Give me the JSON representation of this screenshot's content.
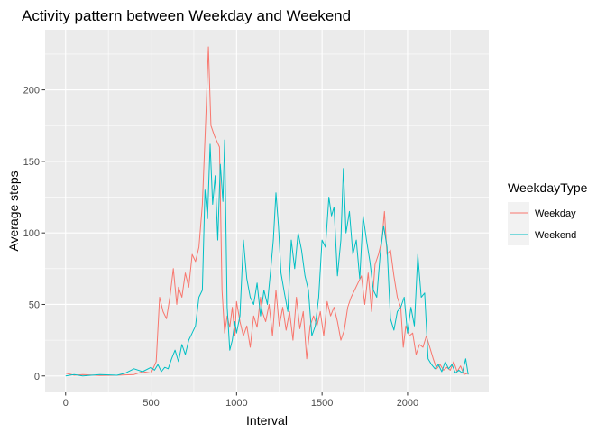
{
  "chart_data": {
    "type": "line",
    "title": "Activity pattern between Weekday and Weekend",
    "xlabel": "Interval",
    "ylabel": "Average steps",
    "xlim": [
      -120,
      2475
    ],
    "ylim": [
      -11.5,
      242
    ],
    "xticks": [
      0,
      500,
      1000,
      1500,
      2000
    ],
    "yticks": [
      0,
      50,
      100,
      150,
      200
    ],
    "grid": true,
    "legend": {
      "title": "WeekdayType",
      "placement": "right"
    },
    "series": [
      {
        "name": "Weekday",
        "color": "#F8766D",
        "points": [
          [
            0,
            2
          ],
          [
            50,
            0.5
          ],
          [
            100,
            1
          ],
          [
            200,
            0.3
          ],
          [
            300,
            0.5
          ],
          [
            400,
            1
          ],
          [
            450,
            3
          ],
          [
            500,
            2
          ],
          [
            530,
            10
          ],
          [
            550,
            55
          ],
          [
            570,
            45
          ],
          [
            590,
            40
          ],
          [
            610,
            55
          ],
          [
            630,
            75
          ],
          [
            650,
            50
          ],
          [
            660,
            62
          ],
          [
            680,
            55
          ],
          [
            700,
            72
          ],
          [
            720,
            62
          ],
          [
            740,
            85
          ],
          [
            760,
            80
          ],
          [
            780,
            90
          ],
          [
            800,
            120
          ],
          [
            820,
            180
          ],
          [
            835,
            230
          ],
          [
            850,
            175
          ],
          [
            870,
            168
          ],
          [
            900,
            160
          ],
          [
            915,
            60
          ],
          [
            930,
            30
          ],
          [
            945,
            42
          ],
          [
            960,
            34
          ],
          [
            975,
            48
          ],
          [
            990,
            28
          ],
          [
            1000,
            52
          ],
          [
            1020,
            38
          ],
          [
            1040,
            28
          ],
          [
            1060,
            35
          ],
          [
            1080,
            20
          ],
          [
            1100,
            42
          ],
          [
            1120,
            34
          ],
          [
            1140,
            55
          ],
          [
            1150,
            45
          ],
          [
            1170,
            38
          ],
          [
            1190,
            50
          ],
          [
            1210,
            28
          ],
          [
            1230,
            60
          ],
          [
            1250,
            35
          ],
          [
            1270,
            48
          ],
          [
            1290,
            32
          ],
          [
            1310,
            45
          ],
          [
            1330,
            25
          ],
          [
            1350,
            55
          ],
          [
            1370,
            33
          ],
          [
            1390,
            45
          ],
          [
            1410,
            12
          ],
          [
            1430,
            35
          ],
          [
            1450,
            42
          ],
          [
            1470,
            35
          ],
          [
            1490,
            45
          ],
          [
            1510,
            28
          ],
          [
            1530,
            52
          ],
          [
            1550,
            42
          ],
          [
            1570,
            48
          ],
          [
            1590,
            38
          ],
          [
            1610,
            25
          ],
          [
            1630,
            32
          ],
          [
            1650,
            48
          ],
          [
            1670,
            55
          ],
          [
            1690,
            60
          ],
          [
            1710,
            65
          ],
          [
            1730,
            70
          ],
          [
            1750,
            50
          ],
          [
            1770,
            72
          ],
          [
            1790,
            45
          ],
          [
            1810,
            78
          ],
          [
            1830,
            85
          ],
          [
            1850,
            95
          ],
          [
            1865,
            115
          ],
          [
            1880,
            85
          ],
          [
            1900,
            88
          ],
          [
            1920,
            70
          ],
          [
            1940,
            55
          ],
          [
            1960,
            48
          ],
          [
            1975,
            20
          ],
          [
            1990,
            35
          ],
          [
            2010,
            28
          ],
          [
            2030,
            30
          ],
          [
            2050,
            15
          ],
          [
            2070,
            22
          ],
          [
            2090,
            20
          ],
          [
            2110,
            28
          ],
          [
            2130,
            20
          ],
          [
            2150,
            12
          ],
          [
            2170,
            5
          ],
          [
            2190,
            8
          ],
          [
            2210,
            4
          ],
          [
            2230,
            6
          ],
          [
            2250,
            4
          ],
          [
            2270,
            10
          ],
          [
            2290,
            3
          ],
          [
            2310,
            7
          ],
          [
            2330,
            1
          ],
          [
            2355,
            2
          ]
        ]
      },
      {
        "name": "Weekend",
        "color": "#00BFC4",
        "points": [
          [
            0,
            0
          ],
          [
            50,
            1
          ],
          [
            100,
            0
          ],
          [
            200,
            1
          ],
          [
            300,
            0.5
          ],
          [
            350,
            2
          ],
          [
            400,
            5
          ],
          [
            450,
            3
          ],
          [
            500,
            6
          ],
          [
            520,
            4
          ],
          [
            540,
            8
          ],
          [
            560,
            3
          ],
          [
            580,
            6
          ],
          [
            600,
            5
          ],
          [
            620,
            12
          ],
          [
            640,
            18
          ],
          [
            660,
            10
          ],
          [
            680,
            22
          ],
          [
            700,
            15
          ],
          [
            720,
            25
          ],
          [
            740,
            30
          ],
          [
            760,
            35
          ],
          [
            780,
            55
          ],
          [
            800,
            60
          ],
          [
            815,
            130
          ],
          [
            830,
            110
          ],
          [
            845,
            162
          ],
          [
            860,
            120
          ],
          [
            875,
            140
          ],
          [
            890,
            95
          ],
          [
            905,
            148
          ],
          [
            920,
            122
          ],
          [
            930,
            165
          ],
          [
            945,
            48
          ],
          [
            960,
            18
          ],
          [
            975,
            25
          ],
          [
            990,
            38
          ],
          [
            1000,
            30
          ],
          [
            1020,
            42
          ],
          [
            1040,
            95
          ],
          [
            1060,
            68
          ],
          [
            1080,
            55
          ],
          [
            1100,
            50
          ],
          [
            1120,
            65
          ],
          [
            1140,
            42
          ],
          [
            1160,
            60
          ],
          [
            1180,
            50
          ],
          [
            1200,
            75
          ],
          [
            1215,
            95
          ],
          [
            1230,
            128
          ],
          [
            1245,
            105
          ],
          [
            1260,
            72
          ],
          [
            1280,
            58
          ],
          [
            1300,
            45
          ],
          [
            1320,
            95
          ],
          [
            1340,
            75
          ],
          [
            1360,
            100
          ],
          [
            1380,
            88
          ],
          [
            1400,
            70
          ],
          [
            1420,
            60
          ],
          [
            1440,
            28
          ],
          [
            1460,
            35
          ],
          [
            1480,
            55
          ],
          [
            1500,
            95
          ],
          [
            1520,
            90
          ],
          [
            1540,
            125
          ],
          [
            1555,
            112
          ],
          [
            1570,
            118
          ],
          [
            1590,
            70
          ],
          [
            1610,
            95
          ],
          [
            1625,
            145
          ],
          [
            1640,
            100
          ],
          [
            1660,
            115
          ],
          [
            1680,
            85
          ],
          [
            1700,
            95
          ],
          [
            1720,
            68
          ],
          [
            1740,
            112
          ],
          [
            1760,
            95
          ],
          [
            1780,
            80
          ],
          [
            1800,
            60
          ],
          [
            1820,
            55
          ],
          [
            1840,
            85
          ],
          [
            1860,
            105
          ],
          [
            1880,
            90
          ],
          [
            1900,
            40
          ],
          [
            1920,
            32
          ],
          [
            1940,
            45
          ],
          [
            1960,
            48
          ],
          [
            1980,
            55
          ],
          [
            2000,
            30
          ],
          [
            2020,
            48
          ],
          [
            2040,
            35
          ],
          [
            2060,
            85
          ],
          [
            2080,
            55
          ],
          [
            2100,
            58
          ],
          [
            2120,
            12
          ],
          [
            2140,
            8
          ],
          [
            2160,
            5
          ],
          [
            2180,
            8
          ],
          [
            2200,
            3
          ],
          [
            2220,
            10
          ],
          [
            2240,
            5
          ],
          [
            2260,
            8
          ],
          [
            2280,
            2
          ],
          [
            2300,
            4
          ],
          [
            2320,
            2
          ],
          [
            2340,
            12
          ],
          [
            2355,
            1
          ]
        ]
      }
    ]
  }
}
